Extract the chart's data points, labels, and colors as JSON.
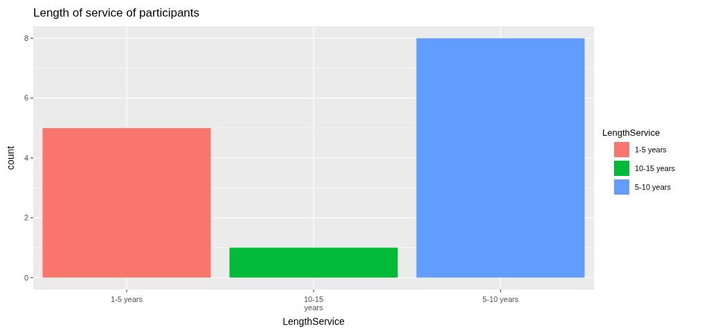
{
  "chart_data": {
    "type": "bar",
    "title": "Length of service of participants",
    "xlabel": "LengthService",
    "ylabel": "count",
    "legend_title": "LengthService",
    "categories": [
      "1-5 years",
      "10-15 years",
      "5-10 years"
    ],
    "stacked": true,
    "series": [
      {
        "name": "1-5 years",
        "color": "#f8766d",
        "values": [
          5,
          null,
          null
        ]
      },
      {
        "name": "10-15 years",
        "color": "#00ba38",
        "values": [
          null,
          1,
          null
        ]
      },
      {
        "name": "5-10 years",
        "color": "#619cff",
        "values": [
          null,
          null,
          8
        ]
      }
    ],
    "ylim": [
      -0.4,
      8.4
    ],
    "yticks": [
      0,
      2,
      4,
      6,
      8
    ],
    "grid": true,
    "legend": "right"
  }
}
